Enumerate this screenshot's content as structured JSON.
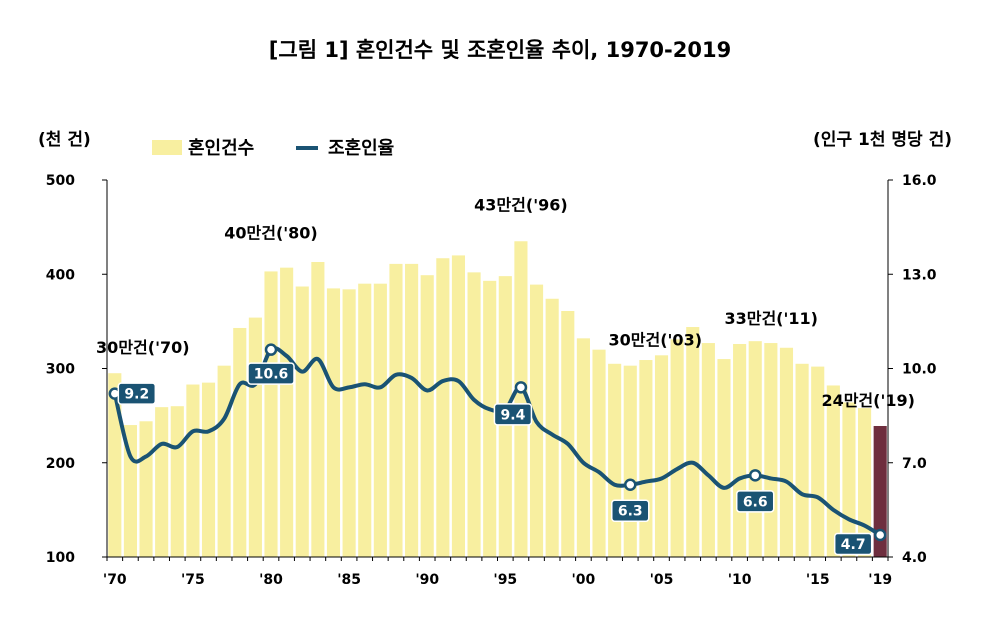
{
  "chart_data": {
    "type": "bar",
    "title": "[그림 1] 혼인건수 및 조혼인율 추이, 1970-2019",
    "y_left_label": "(천 건)",
    "y_right_label": "(인구 1천 명당 건)",
    "y_left_lim": [
      100,
      500
    ],
    "y_left_ticks": [
      "100",
      "200",
      "300",
      "400",
      "500"
    ],
    "y_right_lim": [
      4.0,
      16.0
    ],
    "y_right_ticks": [
      "4.0",
      "7.0",
      "10.0",
      "13.0",
      "16.0"
    ],
    "x_tick_labels": [
      {
        "year": 1970,
        "label": "'70"
      },
      {
        "year": 1975,
        "label": "'75"
      },
      {
        "year": 1980,
        "label": "'80"
      },
      {
        "year": 1985,
        "label": "'85"
      },
      {
        "year": 1990,
        "label": "'90"
      },
      {
        "year": 1995,
        "label": "'95"
      },
      {
        "year": 2000,
        "label": "'00"
      },
      {
        "year": 2005,
        "label": "'05"
      },
      {
        "year": 2010,
        "label": "'10"
      },
      {
        "year": 2015,
        "label": "'15"
      },
      {
        "year": 2019,
        "label": "'19"
      }
    ],
    "legend": [
      "혼인건수",
      "조혼인율"
    ],
    "grid": false,
    "colors": {
      "bars": "#F8EFA0",
      "last_bar": "#6E2E3E",
      "line": "#1A5373",
      "label_box": "#1A5373",
      "marker_fill": "#ffffff"
    },
    "years": [
      1970,
      1971,
      1972,
      1973,
      1974,
      1975,
      1976,
      1977,
      1978,
      1979,
      1980,
      1981,
      1982,
      1983,
      1984,
      1985,
      1986,
      1987,
      1988,
      1989,
      1990,
      1991,
      1992,
      1993,
      1994,
      1995,
      1996,
      1997,
      1998,
      1999,
      2000,
      2001,
      2002,
      2003,
      2004,
      2005,
      2006,
      2007,
      2008,
      2009,
      2010,
      2011,
      2012,
      2013,
      2014,
      2015,
      2016,
      2017,
      2018,
      2019
    ],
    "series": [
      {
        "name": "혼인건수",
        "axis": "left",
        "kind": "bar",
        "values": [
          295,
          240,
          244,
          259,
          260,
          283,
          285,
          303,
          343,
          354,
          403,
          407,
          387,
          413,
          385,
          384,
          390,
          390,
          411,
          411,
          399,
          417,
          420,
          402,
          393,
          398,
          435,
          389,
          374,
          361,
          332,
          320,
          305,
          303,
          309,
          314,
          331,
          344,
          327,
          310,
          326,
          329,
          327,
          322,
          305,
          302,
          282,
          264,
          258,
          239
        ]
      },
      {
        "name": "조혼인율",
        "axis": "right",
        "kind": "line",
        "values": [
          9.2,
          7.2,
          7.2,
          7.6,
          7.5,
          8.0,
          8.0,
          8.4,
          9.5,
          9.5,
          10.6,
          10.4,
          9.9,
          10.3,
          9.4,
          9.4,
          9.5,
          9.4,
          9.8,
          9.7,
          9.3,
          9.6,
          9.6,
          9.0,
          8.7,
          8.7,
          9.4,
          8.3,
          7.9,
          7.6,
          7.0,
          6.7,
          6.3,
          6.3,
          6.4,
          6.5,
          6.8,
          7.0,
          6.6,
          6.2,
          6.5,
          6.6,
          6.5,
          6.4,
          6.0,
          5.9,
          5.5,
          5.2,
          5.0,
          4.7
        ]
      }
    ],
    "annotations": [
      {
        "year": 1970,
        "text": "30만건('70)"
      },
      {
        "year": 1980,
        "text": "40만건('80)"
      },
      {
        "year": 1996,
        "text": "43만건('96)"
      },
      {
        "year": 2003,
        "text": "30만건('03)"
      },
      {
        "year": 2011,
        "text": "33만건('11)"
      },
      {
        "year": 2019,
        "text": "24만건('19)"
      }
    ],
    "rate_labels": [
      {
        "year": 1970,
        "text": "9.2"
      },
      {
        "year": 1980,
        "text": "10.6"
      },
      {
        "year": 1996,
        "text": "9.4"
      },
      {
        "year": 2003,
        "text": "6.3"
      },
      {
        "year": 2011,
        "text": "6.6"
      },
      {
        "year": 2019,
        "text": "4.7"
      }
    ]
  }
}
